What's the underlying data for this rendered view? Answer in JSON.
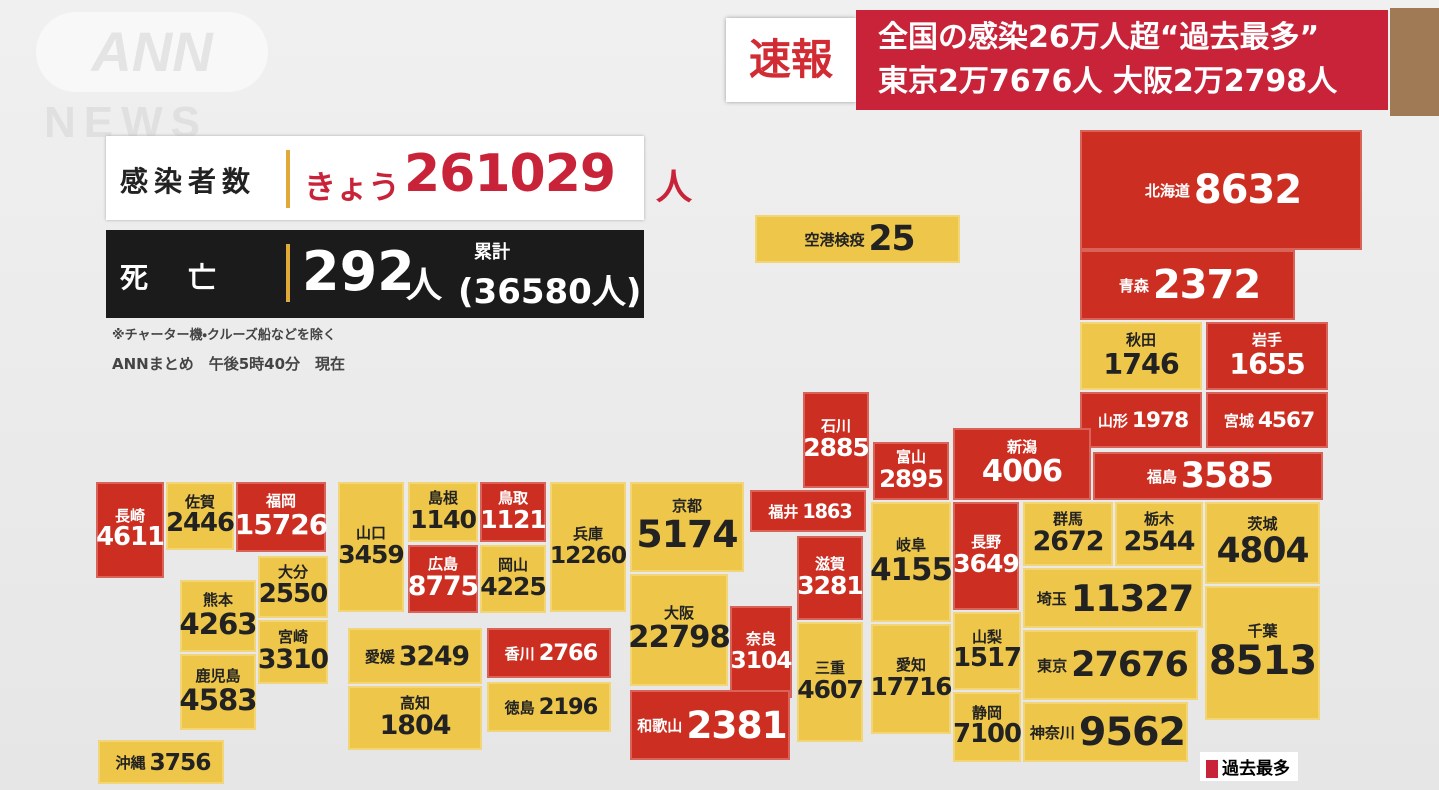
{
  "header": {
    "logo": "ANN",
    "logo_sub": "NEWS",
    "flash_label": "速報",
    "headline_lines": [
      "全国の感染26万人超“過去最多”",
      "東京2万7676人 大阪2万2798人"
    ]
  },
  "stats": {
    "cases": {
      "label": "感染者数",
      "prefix": "きょう",
      "value": 261029,
      "unit": "人"
    },
    "deaths": {
      "label": "死　亡",
      "value": 292,
      "unit": "人",
      "cumulative_label": "累計",
      "cumulative": "(36580人)"
    },
    "note": "※チャーター機・クルーズ船などを除く",
    "source": "ANNまとめ　午後5時40分　現在"
  },
  "legend": {
    "label": "過去最多"
  },
  "prefectures": [
    {
      "name": "北海道",
      "count": 8632,
      "record": true
    },
    {
      "name": "青森",
      "count": 2372,
      "record": true
    },
    {
      "name": "秋田",
      "count": 1746,
      "record": false
    },
    {
      "name": "岩手",
      "count": 1655,
      "record": true
    },
    {
      "name": "山形",
      "count": 1978,
      "record": true
    },
    {
      "name": "宮城",
      "count": 4567,
      "record": true
    },
    {
      "name": "新潟",
      "count": 4006,
      "record": true
    },
    {
      "name": "福島",
      "count": 3585,
      "record": true
    },
    {
      "name": "石川",
      "count": 2885,
      "record": true
    },
    {
      "name": "富山",
      "count": 2895,
      "record": true
    },
    {
      "name": "福井",
      "count": 1863,
      "record": true
    },
    {
      "name": "長野",
      "count": 3649,
      "record": true
    },
    {
      "name": "群馬",
      "count": 2672,
      "record": false
    },
    {
      "name": "栃木",
      "count": 2544,
      "record": false
    },
    {
      "name": "茨城",
      "count": 4804,
      "record": false
    },
    {
      "name": "埼玉",
      "count": 11327,
      "record": false
    },
    {
      "name": "千葉",
      "count": 8513,
      "record": false
    },
    {
      "name": "東京",
      "count": 27676,
      "record": false
    },
    {
      "name": "神奈川",
      "count": 9562,
      "record": false
    },
    {
      "name": "山梨",
      "count": 1517,
      "record": false
    },
    {
      "name": "静岡",
      "count": 7100,
      "record": false
    },
    {
      "name": "岐阜",
      "count": 4155,
      "record": false
    },
    {
      "name": "愛知",
      "count": 17716,
      "record": false
    },
    {
      "name": "滋賀",
      "count": 3281,
      "record": true
    },
    {
      "name": "三重",
      "count": 4607,
      "record": false
    },
    {
      "name": "京都",
      "count": 5174,
      "record": false
    },
    {
      "name": "大阪",
      "count": 22798,
      "record": false
    },
    {
      "name": "奈良",
      "count": 3104,
      "record": true
    },
    {
      "name": "和歌山",
      "count": 2381,
      "record": true
    },
    {
      "name": "兵庫",
      "count": 12260,
      "record": false
    },
    {
      "name": "鳥取",
      "count": 1121,
      "record": true
    },
    {
      "name": "岡山",
      "count": 4225,
      "record": false
    },
    {
      "name": "島根",
      "count": 1140,
      "record": false
    },
    {
      "name": "広島",
      "count": 8775,
      "record": true
    },
    {
      "name": "山口",
      "count": 3459,
      "record": false
    },
    {
      "name": "香川",
      "count": 2766,
      "record": true
    },
    {
      "name": "徳島",
      "count": 2196,
      "record": false
    },
    {
      "name": "愛媛",
      "count": 3249,
      "record": false
    },
    {
      "name": "高知",
      "count": 1804,
      "record": false
    },
    {
      "name": "福岡",
      "count": 15726,
      "record": true
    },
    {
      "name": "佐賀",
      "count": 2446,
      "record": false
    },
    {
      "name": "長崎",
      "count": 4611,
      "record": true
    },
    {
      "name": "大分",
      "count": 2550,
      "record": false
    },
    {
      "name": "熊本",
      "count": 4263,
      "record": false
    },
    {
      "name": "宮崎",
      "count": 3310,
      "record": false
    },
    {
      "name": "鹿児島",
      "count": 4583,
      "record": false
    },
    {
      "name": "沖縄",
      "count": 3756,
      "record": false
    },
    {
      "name": "空港検疫",
      "count": 25,
      "record": false
    }
  ]
}
